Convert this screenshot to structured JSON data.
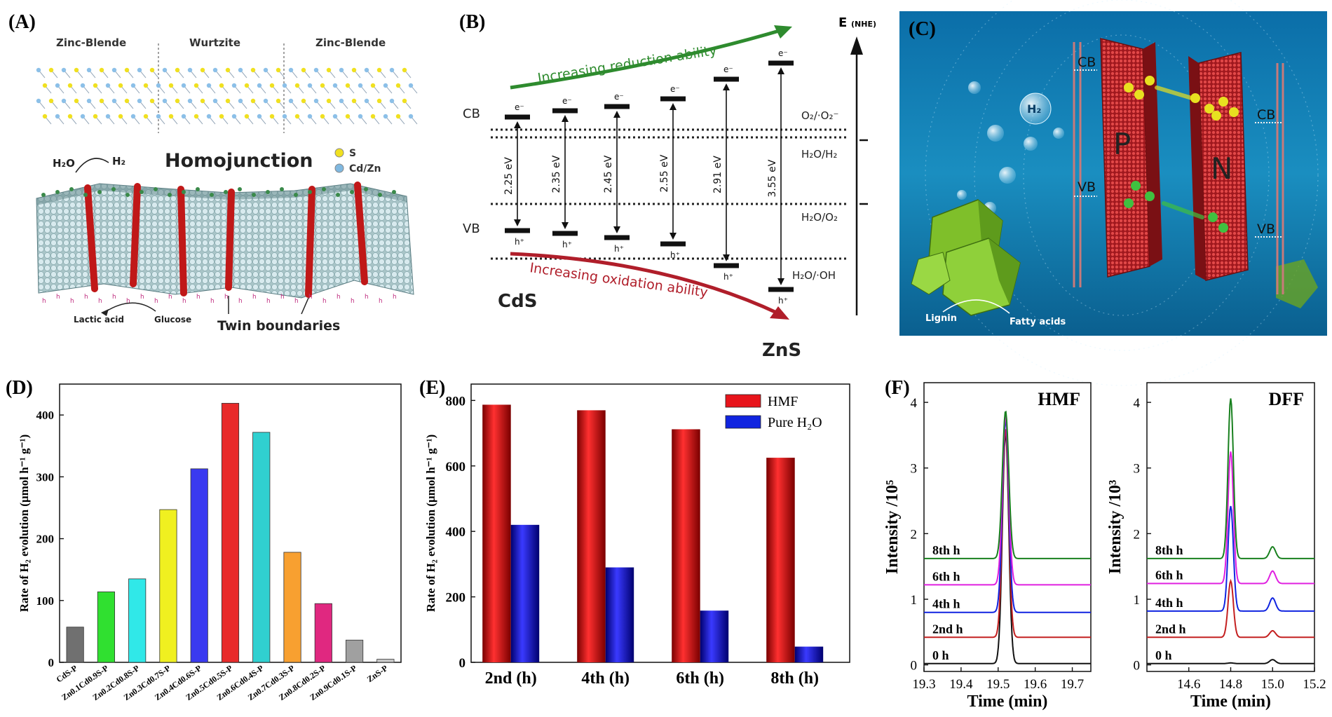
{
  "colors": {
    "red": "#e8141b",
    "blue": "#1024e0",
    "green": "#18801e",
    "magenta": "#e020e0",
    "darkred": "#c42020",
    "black": "#111111",
    "cyan_bg": "#1a7fb0",
    "arrow_green": "#2e8b2e",
    "arrow_red": "#b01e2a"
  },
  "panelA": {
    "label": "(A)",
    "phases": [
      "Zinc-Blende",
      "Wurtzite",
      "Zinc-Blende"
    ],
    "title": "Homojunction",
    "legend_s": "S",
    "legend_cdzn": "Cd/Zn",
    "h2o": "H₂O",
    "h2": "H₂",
    "lactic": "Lactic acid",
    "glucose": "Glucose",
    "twin": "Twin boundaries"
  },
  "panelB": {
    "label": "(B)",
    "axis_label": "E",
    "axis_unit": "(NHE)",
    "cb": "CB",
    "vb": "VB",
    "reduction": "Increasing reduction ability",
    "oxidation": "Increasing oxidation ability",
    "left_material": "CdS",
    "right_material": "ZnS",
    "gaps": [
      "2.25 eV",
      "2.35 eV",
      "2.45 eV",
      "2.55 eV",
      "2.91 eV",
      "3.55 eV"
    ],
    "electron": "e⁻",
    "hole": "h⁺",
    "redox1": "O₂/·O₂⁻",
    "redox2": "H₂O/H₂",
    "redox3": "H₂O/O₂",
    "redox4": "H₂O/·OH"
  },
  "panelC": {
    "label": "(C)",
    "cb": "CB",
    "vb": "VB",
    "p": "P",
    "n": "N",
    "h2": "H₂",
    "lignin": "Lignin",
    "fatty": "Fatty acids"
  },
  "chart_data": [
    {
      "panel": "(D)",
      "type": "bar",
      "ylabel": "Rate of H₂ evolution (μmol h⁻¹ g⁻¹)",
      "ylim": [
        0,
        450
      ],
      "yticks": [
        0,
        100,
        200,
        300,
        400
      ],
      "categories": [
        "CdS-P",
        "Zn0.1Cd0.9S-P",
        "Zn0.2Cd0.8S-P",
        "Zn0.3Cd0.7S-P",
        "Zn0.4Cd0.6S-P",
        "Zn0.5Cd0.5S-P",
        "Zn0.6Cd0.4S-P",
        "Zn0.7Cd0.3S-P",
        "Zn0.8Cd0.2S-P",
        "Zn0.9Cd0.1S-P",
        "ZnS-P"
      ],
      "values": [
        57,
        114,
        135,
        247,
        313,
        419,
        372,
        178,
        95,
        36,
        5
      ],
      "bar_colors": [
        "#707070",
        "#30e030",
        "#30e8e8",
        "#f0f020",
        "#3a3af0",
        "#e82a2a",
        "#30d0d0",
        "#f8a030",
        "#e02880",
        "#a0a0a0",
        "#c8c8c8"
      ]
    },
    {
      "panel": "(E)",
      "type": "bar",
      "ylabel": "Rate of H₂ evolution (μmol h⁻¹ g⁻¹)",
      "ylim": [
        0,
        850
      ],
      "yticks": [
        0,
        200,
        400,
        600,
        800
      ],
      "categories": [
        "2nd (h)",
        "4th (h)",
        "6th (h)",
        "8th (h)"
      ],
      "series": [
        {
          "name": "HMF",
          "values": [
            787,
            770,
            712,
            625
          ]
        },
        {
          "name": "Pure H₂O",
          "values": [
            420,
            290,
            158,
            48
          ]
        }
      ]
    },
    {
      "panel": "(F)",
      "type": "line",
      "title": "HMF",
      "xlabel": "Time (min)",
      "ylabel": "Intensity /10⁵",
      "xlim": [
        19.3,
        19.75
      ],
      "ylim": [
        -0.1,
        4.3
      ],
      "xticks": [
        19.3,
        19.4,
        19.5,
        19.6,
        19.7
      ],
      "yticks": [
        0,
        1,
        2,
        3,
        4
      ],
      "peak_x": 19.52,
      "series": [
        {
          "name": "0 h",
          "baseline": 0.02,
          "peak": 3.55
        },
        {
          "name": "2nd h",
          "baseline": 0.42,
          "peak": 3.6
        },
        {
          "name": "4th h",
          "baseline": 0.8,
          "peak": 3.75
        },
        {
          "name": "6th h",
          "baseline": 1.22,
          "peak": 3.8
        },
        {
          "name": "8th h",
          "baseline": 1.62,
          "peak": 3.87
        }
      ]
    },
    {
      "panel": "(F)",
      "type": "line",
      "title": "DFF",
      "xlabel": "Time (min)",
      "ylabel": "Intensity /10³",
      "xlim": [
        14.4,
        15.2
      ],
      "ylim": [
        -0.1,
        4.3
      ],
      "xticks": [
        14.6,
        14.8,
        15.0,
        15.2
      ],
      "yticks": [
        0,
        1,
        2,
        3,
        4
      ],
      "peak_x": 14.8,
      "series": [
        {
          "name": "0 h",
          "baseline": 0.02,
          "peak": 0.03,
          "minor": 0.08
        },
        {
          "name": "2nd h",
          "baseline": 0.42,
          "peak": 1.28,
          "minor": 0.52
        },
        {
          "name": "4th h",
          "baseline": 0.82,
          "peak": 2.42,
          "minor": 1.02
        },
        {
          "name": "6th h",
          "baseline": 1.24,
          "peak": 3.25,
          "minor": 1.43
        },
        {
          "name": "8th h",
          "baseline": 1.62,
          "peak": 4.06,
          "minor": 1.8
        }
      ]
    }
  ]
}
